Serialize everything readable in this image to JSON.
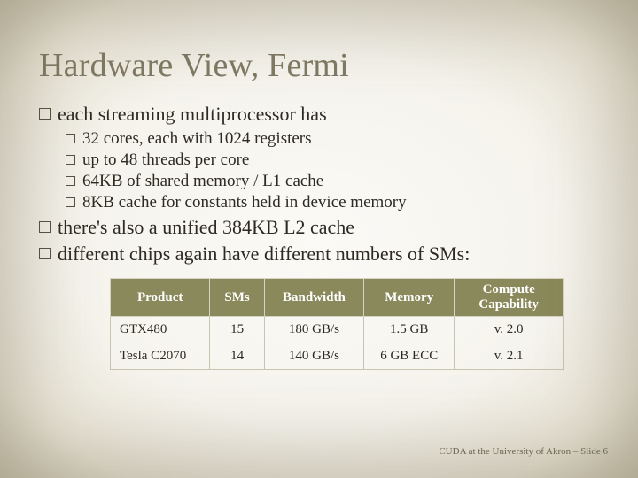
{
  "title": "Hardware View, Fermi",
  "bullets_l1": {
    "b0": "each streaming multiprocessor has",
    "b1": "there's also a unified 384KB L2 cache",
    "b2": "different chips again have different numbers of SMs:"
  },
  "bullets_l2": {
    "s0": "32 cores, each with 1024 registers",
    "s1": "up to 48 threads per core",
    "s2": "64KB of shared memory / L1 cache",
    "s3": "8KB cache for constants held in device memory"
  },
  "table": {
    "headers": {
      "c0": "Product",
      "c1": "SMs",
      "c2": "Bandwidth",
      "c3": "Memory",
      "c4": "Compute Capability"
    },
    "rows": {
      "r0": {
        "c0": "GTX480",
        "c1": "15",
        "c2": "180 GB/s",
        "c3": "1.5 GB",
        "c4": "v. 2.0"
      },
      "r1": {
        "c0": "Tesla C2070",
        "c1": "14",
        "c2": "140 GB/s",
        "c3": "6 GB ECC",
        "c4": "v. 2.1"
      }
    },
    "col_widths": [
      "22%",
      "12%",
      "22%",
      "20%",
      "24%"
    ],
    "header_bg": "#8a895b",
    "header_fg": "#ffffff",
    "border_color": "#c9c4b0"
  },
  "footer": "CUDA at the University of Akron – Slide 6",
  "colors": {
    "title": "#7f7a64",
    "body_text": "#2d2a22",
    "bullet_border": "#575242",
    "bg_inner": "#fbfaf6",
    "bg_outer": "#cfc9b4"
  },
  "typography": {
    "title_fontsize_pt": 29,
    "l1_fontsize_pt": 17,
    "l2_fontsize_pt": 14,
    "table_fontsize_pt": 11,
    "footer_fontsize_pt": 8,
    "font_family": "Georgia serif"
  }
}
